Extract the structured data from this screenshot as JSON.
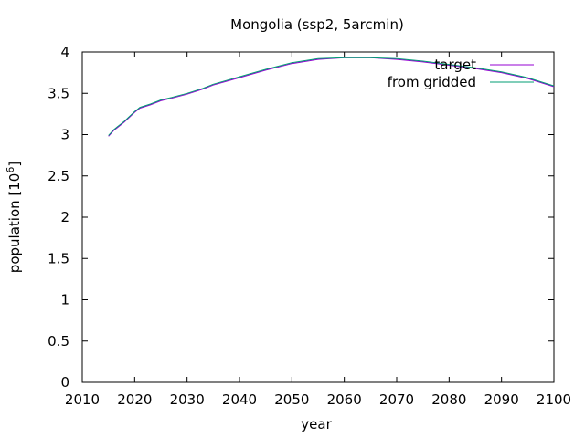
{
  "chart_data": {
    "type": "line",
    "title": "Mongolia (ssp2, 5arcmin)",
    "xlabel": "year",
    "ylabel_main": "population [10",
    "ylabel_exp": "6",
    "ylabel_close": "]",
    "xlim": [
      2010,
      2100
    ],
    "ylim": [
      0,
      4
    ],
    "x_ticks": [
      2010,
      2020,
      2030,
      2040,
      2050,
      2060,
      2070,
      2080,
      2090,
      2100
    ],
    "y_ticks": [
      0,
      0.5,
      1,
      1.5,
      2,
      2.5,
      3,
      3.5,
      4
    ],
    "y_tick_labels": [
      "0",
      "0.5",
      "1",
      "1.5",
      "2",
      "2.5",
      "3",
      "3.5",
      "4"
    ],
    "grid": false,
    "legend_position": "top-right",
    "series": [
      {
        "name": "target",
        "color": "#9400d3",
        "x": [
          2015,
          2016,
          2018,
          2020,
          2021,
          2023,
          2025,
          2027,
          2030,
          2033,
          2035,
          2040,
          2045,
          2050,
          2055,
          2060,
          2065,
          2070,
          2075,
          2080,
          2085,
          2090,
          2095,
          2100
        ],
        "values": [
          2.98,
          3.05,
          3.15,
          3.27,
          3.32,
          3.36,
          3.41,
          3.44,
          3.49,
          3.55,
          3.6,
          3.69,
          3.78,
          3.86,
          3.91,
          3.93,
          3.93,
          3.91,
          3.88,
          3.84,
          3.8,
          3.75,
          3.68,
          3.58
        ]
      },
      {
        "name": "from gridded",
        "color": "#009e73",
        "x": [
          2015,
          2016,
          2018,
          2020,
          2021,
          2023,
          2025,
          2027,
          2030,
          2033,
          2035,
          2040,
          2045,
          2050,
          2055,
          2060,
          2065,
          2070,
          2075,
          2080,
          2085,
          2090,
          2095,
          2100
        ],
        "values": [
          2.99,
          3.06,
          3.16,
          3.28,
          3.33,
          3.37,
          3.42,
          3.45,
          3.5,
          3.56,
          3.61,
          3.7,
          3.79,
          3.87,
          3.92,
          3.93,
          3.93,
          3.92,
          3.89,
          3.85,
          3.81,
          3.76,
          3.69,
          3.59
        ]
      }
    ]
  }
}
